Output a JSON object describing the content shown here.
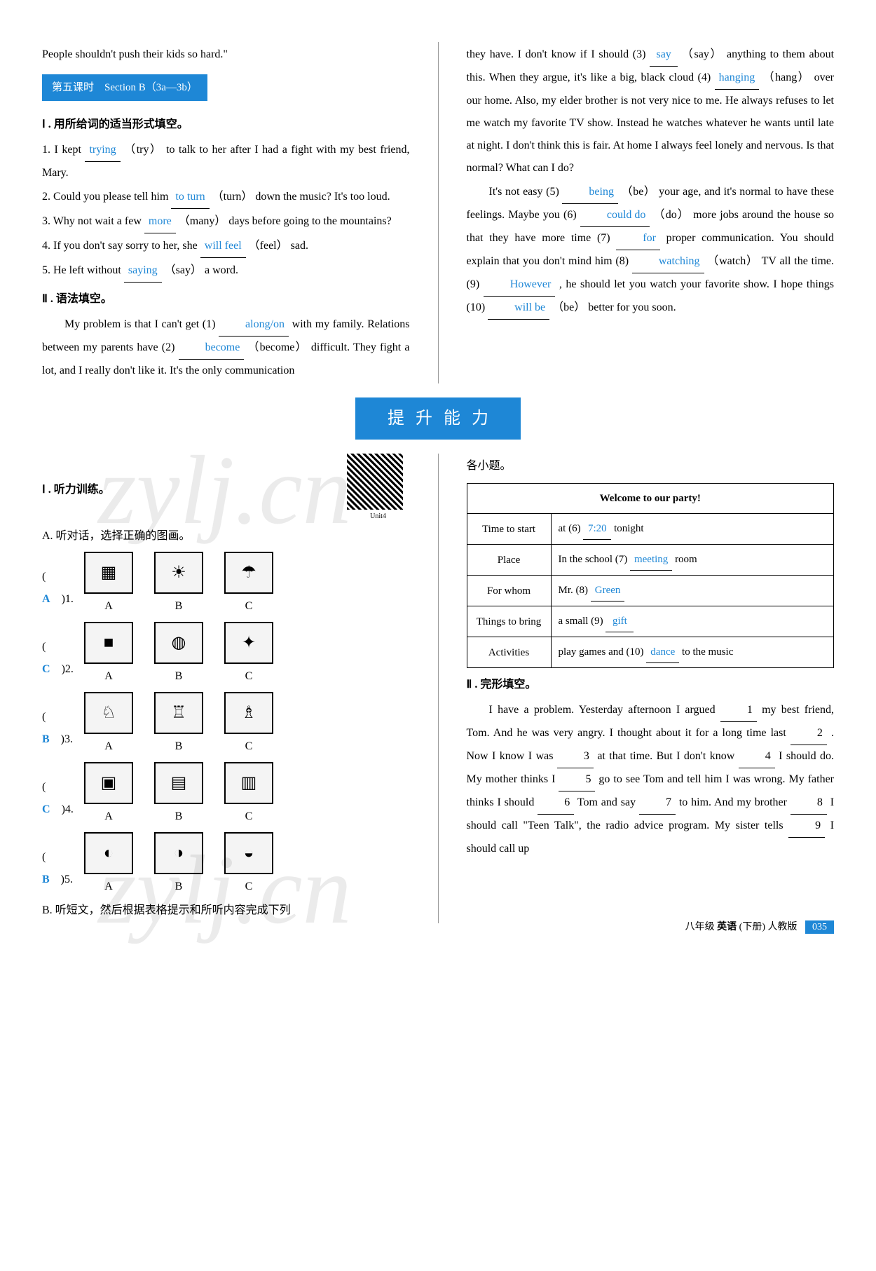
{
  "top_left": {
    "intro_sentence": "People shouldn't push their kids so hard.\"",
    "lesson_header": "第五课时　Section B（3a—3b）",
    "section1_title": "Ⅰ . 用所给词的适当形式填空。",
    "q1_a": "1. I kept ",
    "q1_ans": "trying",
    "q1_hint": "（try）",
    "q1_b": " to talk to her after I had a fight with my best friend, Mary.",
    "q2_a": "2. Could you please tell him ",
    "q2_ans": "to turn",
    "q2_hint": "（turn）",
    "q2_b": " down the music? It's too loud.",
    "q3_a": "3. Why not wait a few ",
    "q3_ans": "more",
    "q3_hint": "（many）",
    "q3_b": " days before going to the mountains?",
    "q4_a": "4. If you don't say sorry to her, she ",
    "q4_ans": "will feel",
    "q4_hint": "（feel）",
    "q4_b": " sad.",
    "q5_a": "5. He left without ",
    "q5_ans": "saying",
    "q5_hint": "（say）",
    "q5_b": " a word.",
    "section2_title": "Ⅱ . 语法填空。",
    "p1_a": "My problem is that I can't get (1) ",
    "p1_ans": "along/on",
    "p1_b": " with my family. Relations between my parents have (2) ",
    "p1_ans2": "become",
    "p1_hint2": "（become）",
    "p1_c": " difficult. They fight a lot, and I really don't like it. It's the only communication"
  },
  "top_right": {
    "p_a": "they have. I don't know if I should (3) ",
    "a3": "say",
    "h3": "（say）",
    "p_b": " anything to them about this. When they argue, it's like a big, black cloud (4) ",
    "a4": "hanging",
    "h4": "（hang）",
    "p_c": " over our home. Also, my elder brother is not very nice to me. He always refuses to let me watch my favorite TV show. Instead he watches whatever he wants until late at night. I don't think this is fair. At home I always feel lonely and nervous. Is that normal? What can I do?",
    "p2_a": "It's not easy (5) ",
    "a5": "being",
    "h5": "（be）",
    "p2_b": " your age, and it's normal to have these feelings. Maybe you (6) ",
    "a6": "could do",
    "h6": "（do）",
    "p2_c": " more jobs around the house so that they have more time (7) ",
    "a7": "for",
    "p2_d": " proper communication. You should explain that you don't mind him (8) ",
    "a8": "watching",
    "h8": "（watch）",
    "p2_e": " TV all the time. (9) ",
    "a9": "However",
    "p2_f": ", he should let you watch your favorite show. I hope things (10) ",
    "a10": "will be",
    "h10": "（be）",
    "p2_g": " better for you soon."
  },
  "banner": "提升能力",
  "bottom_left": {
    "s1": "Ⅰ . 听力训练。",
    "unit_label": "Unit4",
    "sA": "A. 听对话，选择正确的图画。",
    "rows": [
      {
        "num": "1",
        "ans": "A",
        "icons": [
          "▦",
          "☀",
          "☂"
        ]
      },
      {
        "num": "2",
        "ans": "C",
        "icons": [
          "■",
          "◍",
          "✦"
        ]
      },
      {
        "num": "3",
        "ans": "B",
        "icons": [
          "♘",
          "♖",
          "♗"
        ]
      },
      {
        "num": "4",
        "ans": "C",
        "icons": [
          "▣",
          "▤",
          "▥"
        ]
      },
      {
        "num": "5",
        "ans": "B",
        "icons": [
          "◐",
          "◑",
          "◒"
        ]
      }
    ],
    "letters": [
      "A",
      "B",
      "C"
    ],
    "sB": "B. 听短文，然后根据表格提示和所听内容完成下列"
  },
  "bottom_right": {
    "cont": "各小题。",
    "table": {
      "header": "Welcome to our party!",
      "rows": [
        {
          "label": "Time to start",
          "pre": "at (6) ",
          "ans": "7:20",
          "post": " tonight"
        },
        {
          "label": "Place",
          "pre": "In the school (7) ",
          "ans": "meeting",
          "post": " room"
        },
        {
          "label": "For whom",
          "pre": "Mr. (8) ",
          "ans": "Green",
          "post": ""
        },
        {
          "label": "Things to bring",
          "pre": "a small (9) ",
          "ans": "gift",
          "post": ""
        },
        {
          "label": "Activities",
          "pre": "play games and (10) ",
          "ans": "dance",
          "post": " to the music"
        }
      ]
    },
    "s2": "Ⅱ . 完形填空。",
    "cloze_a": "I have a problem. Yesterday afternoon I argued ",
    "b1": "1",
    "cloze_b": " my best friend, Tom. And he was very angry. I thought about it for a long time last ",
    "b2": "2",
    "cloze_c": ". Now I know I was ",
    "b3": "3",
    "cloze_d": " at that time. But I don't know ",
    "b4": "4",
    "cloze_e": " I should do. My mother thinks I ",
    "b5": "5",
    "cloze_f": " go to see Tom and tell him I was wrong. My father thinks I should ",
    "b6": "6",
    "cloze_g": " Tom and say ",
    "b7": "7",
    "cloze_h": " to him. And my brother ",
    "b8": "8",
    "cloze_i": " I should call \"Teen Talk\", the radio advice program. My sister tells ",
    "b9": "9",
    "cloze_j": " I should call up"
  },
  "footer": {
    "grade": "八年级",
    "subject": "英语",
    "volume": "(下册)",
    "edition": "人教版",
    "page": "035"
  },
  "watermark": "zylj.cn"
}
